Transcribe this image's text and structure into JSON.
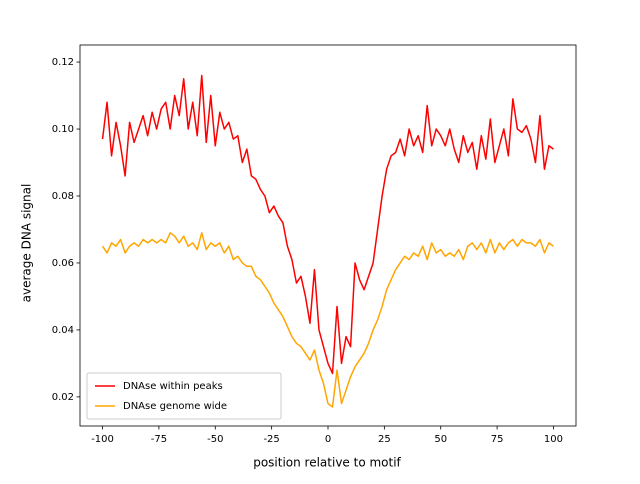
{
  "chart_data": {
    "type": "line",
    "xlabel": "position relative to motif",
    "ylabel": "average DNA signal",
    "x": [
      -100,
      -98,
      -96,
      -94,
      -92,
      -90,
      -88,
      -86,
      -84,
      -82,
      -80,
      -78,
      -76,
      -74,
      -72,
      -70,
      -68,
      -66,
      -64,
      -62,
      -60,
      -58,
      -56,
      -54,
      -52,
      -50,
      -48,
      -46,
      -44,
      -42,
      -40,
      -38,
      -36,
      -34,
      -32,
      -30,
      -28,
      -26,
      -24,
      -22,
      -20,
      -18,
      -16,
      -14,
      -12,
      -10,
      -8,
      -6,
      -4,
      -2,
      0,
      2,
      4,
      6,
      8,
      10,
      12,
      14,
      16,
      18,
      20,
      22,
      24,
      26,
      28,
      30,
      32,
      34,
      36,
      38,
      40,
      42,
      44,
      46,
      48,
      50,
      52,
      54,
      56,
      58,
      60,
      62,
      64,
      66,
      68,
      70,
      72,
      74,
      76,
      78,
      80,
      82,
      84,
      86,
      88,
      90,
      92,
      94,
      96,
      98,
      100
    ],
    "series": [
      {
        "name": "DNAse within peaks",
        "color": "#ff0000",
        "values": [
          0.097,
          0.108,
          0.092,
          0.102,
          0.095,
          0.086,
          0.102,
          0.096,
          0.1,
          0.104,
          0.098,
          0.105,
          0.1,
          0.106,
          0.108,
          0.1,
          0.11,
          0.104,
          0.115,
          0.1,
          0.108,
          0.098,
          0.116,
          0.096,
          0.11,
          0.095,
          0.105,
          0.1,
          0.102,
          0.097,
          0.098,
          0.09,
          0.094,
          0.086,
          0.085,
          0.082,
          0.08,
          0.075,
          0.077,
          0.074,
          0.072,
          0.065,
          0.061,
          0.054,
          0.056,
          0.05,
          0.042,
          0.058,
          0.04,
          0.035,
          0.03,
          0.027,
          0.047,
          0.03,
          0.038,
          0.035,
          0.06,
          0.055,
          0.052,
          0.056,
          0.06,
          0.07,
          0.08,
          0.088,
          0.092,
          0.093,
          0.097,
          0.092,
          0.1,
          0.095,
          0.098,
          0.093,
          0.107,
          0.095,
          0.1,
          0.098,
          0.095,
          0.1,
          0.094,
          0.09,
          0.098,
          0.093,
          0.096,
          0.088,
          0.098,
          0.091,
          0.103,
          0.09,
          0.095,
          0.1,
          0.092,
          0.109,
          0.1,
          0.099,
          0.101,
          0.097,
          0.09,
          0.104,
          0.088,
          0.095,
          0.094
        ]
      },
      {
        "name": "DNAse genome wide",
        "color": "#ffa500",
        "values": [
          0.065,
          0.063,
          0.066,
          0.065,
          0.067,
          0.063,
          0.065,
          0.066,
          0.065,
          0.067,
          0.066,
          0.067,
          0.066,
          0.067,
          0.066,
          0.069,
          0.068,
          0.066,
          0.068,
          0.065,
          0.066,
          0.064,
          0.069,
          0.064,
          0.066,
          0.065,
          0.066,
          0.063,
          0.065,
          0.061,
          0.062,
          0.06,
          0.059,
          0.059,
          0.056,
          0.055,
          0.053,
          0.051,
          0.048,
          0.046,
          0.044,
          0.041,
          0.038,
          0.036,
          0.035,
          0.033,
          0.031,
          0.034,
          0.028,
          0.024,
          0.018,
          0.017,
          0.028,
          0.018,
          0.022,
          0.026,
          0.029,
          0.031,
          0.033,
          0.036,
          0.04,
          0.043,
          0.047,
          0.052,
          0.055,
          0.058,
          0.06,
          0.062,
          0.061,
          0.063,
          0.062,
          0.065,
          0.061,
          0.066,
          0.063,
          0.064,
          0.062,
          0.063,
          0.062,
          0.064,
          0.061,
          0.065,
          0.066,
          0.064,
          0.066,
          0.063,
          0.067,
          0.063,
          0.066,
          0.064,
          0.066,
          0.067,
          0.065,
          0.067,
          0.066,
          0.066,
          0.065,
          0.067,
          0.063,
          0.066,
          0.065
        ]
      }
    ],
    "xlim": [
      -110,
      110
    ],
    "ylim": [
      0.0113,
      0.1251
    ],
    "xticks": [
      -100,
      -75,
      -50,
      -25,
      0,
      25,
      50,
      75,
      100
    ],
    "yticks": [
      0.02,
      0.04,
      0.06,
      0.08,
      {
        "value": 0.1,
        "label": "0.10"
      },
      0.12
    ],
    "legend": "lower left"
  }
}
